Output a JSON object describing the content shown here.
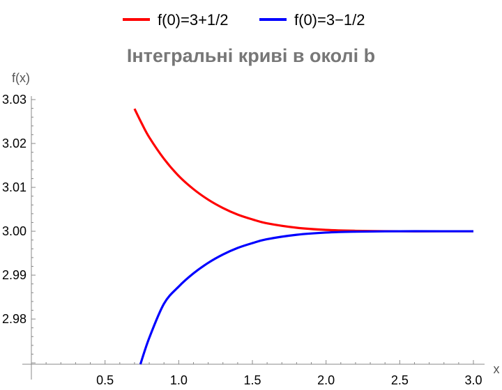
{
  "chart_data": {
    "type": "line",
    "title": "Інтегральні криві в околі b",
    "xlabel": "x",
    "ylabel": "f(x)",
    "xlim": [
      0.0,
      3.0
    ],
    "ylim": [
      2.9697,
      3.03
    ],
    "x_ticks": [
      0.5,
      1.0,
      1.5,
      2.0,
      2.5,
      3.0
    ],
    "x_tick_labels": [
      "0.5",
      "1.0",
      "1.5",
      "2.0",
      "2.5",
      "3.0"
    ],
    "y_ticks": [
      2.98,
      2.99,
      3.0,
      3.01,
      3.02,
      3.03
    ],
    "y_tick_labels": [
      "2.98",
      "2.99",
      "3.00",
      "3.01",
      "3.02",
      "3.03"
    ],
    "legend_position": "top",
    "grid": false,
    "series": [
      {
        "name": "f(0)=3+1/2",
        "color": "#ff0000",
        "x": [
          0.7,
          0.75,
          0.8,
          0.9,
          1.0,
          1.1,
          1.2,
          1.3,
          1.4,
          1.5,
          1.6,
          1.8,
          2.0,
          2.2,
          2.5,
          2.8,
          3.0
        ],
        "y": [
          3.0279,
          3.0245,
          3.0214,
          3.0165,
          3.0126,
          3.0096,
          3.0072,
          3.0053,
          3.0038,
          3.0027,
          3.0018,
          3.0008,
          3.0003,
          3.0001,
          3.0,
          3.0,
          3.0
        ]
      },
      {
        "name": "f(0)=3−1/2",
        "color": "#0000ff",
        "x": [
          0.74,
          0.8,
          0.9,
          1.0,
          1.1,
          1.2,
          1.3,
          1.4,
          1.5,
          1.6,
          1.8,
          2.0,
          2.2,
          2.5,
          2.8,
          3.0
        ],
        "y": [
          2.9697,
          2.9757,
          2.9835,
          2.9874,
          2.9904,
          2.9928,
          2.9947,
          2.9962,
          2.9973,
          2.9982,
          2.9992,
          2.9997,
          2.9999,
          3.0,
          3.0,
          3.0
        ]
      }
    ]
  }
}
